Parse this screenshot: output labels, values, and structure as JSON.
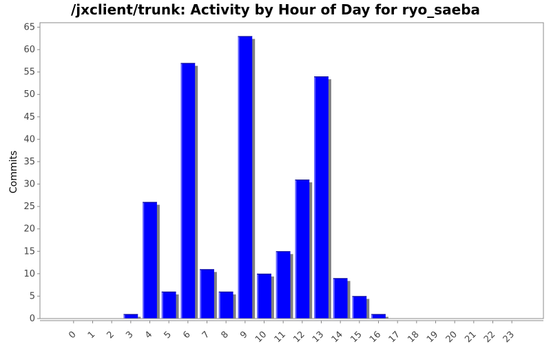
{
  "chart_data": {
    "type": "bar",
    "title": "/jxclient/trunk: Activity by Hour of Day for ryo_saeba",
    "xlabel": "",
    "ylabel": "Commits",
    "categories": [
      "0",
      "1",
      "2",
      "3",
      "4",
      "5",
      "6",
      "7",
      "8",
      "9",
      "10",
      "11",
      "12",
      "13",
      "14",
      "15",
      "16",
      "17",
      "18",
      "19",
      "20",
      "21",
      "22",
      "23"
    ],
    "values": [
      0,
      0,
      0,
      1,
      26,
      6,
      57,
      11,
      6,
      63,
      10,
      15,
      31,
      54,
      9,
      5,
      1,
      0,
      0,
      0,
      0,
      0,
      0,
      0
    ],
    "ylim": [
      0,
      66
    ],
    "yticks": [
      0,
      5,
      10,
      15,
      20,
      25,
      30,
      35,
      40,
      45,
      50,
      55,
      60,
      65
    ],
    "bar_color": "#0000ff",
    "shadow_color": "#808080",
    "grid": false,
    "legend": "none"
  }
}
